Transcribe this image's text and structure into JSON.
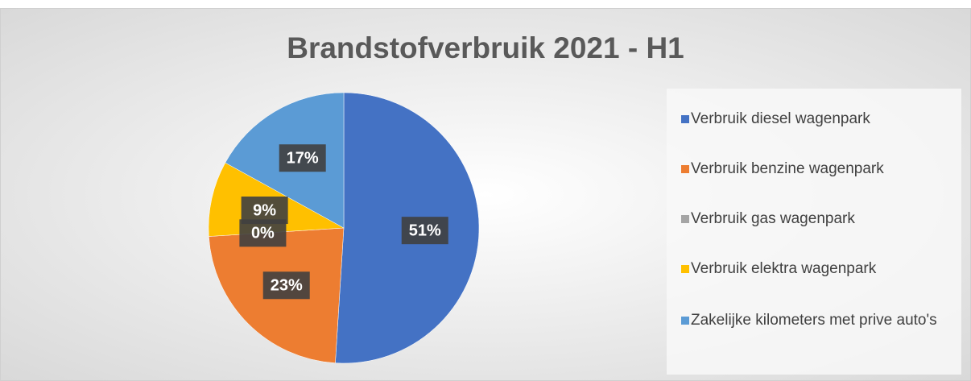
{
  "chart_data": {
    "type": "pie",
    "title": "Brandstofverbruik 2021 - H1",
    "categories": [
      "Verbruik diesel wagenpark",
      "Verbruik benzine wagenpark",
      "Verbruik gas wagenpark",
      "Verbruik elektra wagenpark",
      "Zakelijke kilometers met prive auto's"
    ],
    "values": [
      51,
      23,
      0,
      9,
      17
    ],
    "value_labels": [
      "51%",
      "23%",
      "0%",
      "9%",
      "17%"
    ],
    "colors": [
      "#4472c4",
      "#ed7d31",
      "#a5a5a5",
      "#ffc000",
      "#5b9bd5"
    ],
    "legend": "right"
  }
}
